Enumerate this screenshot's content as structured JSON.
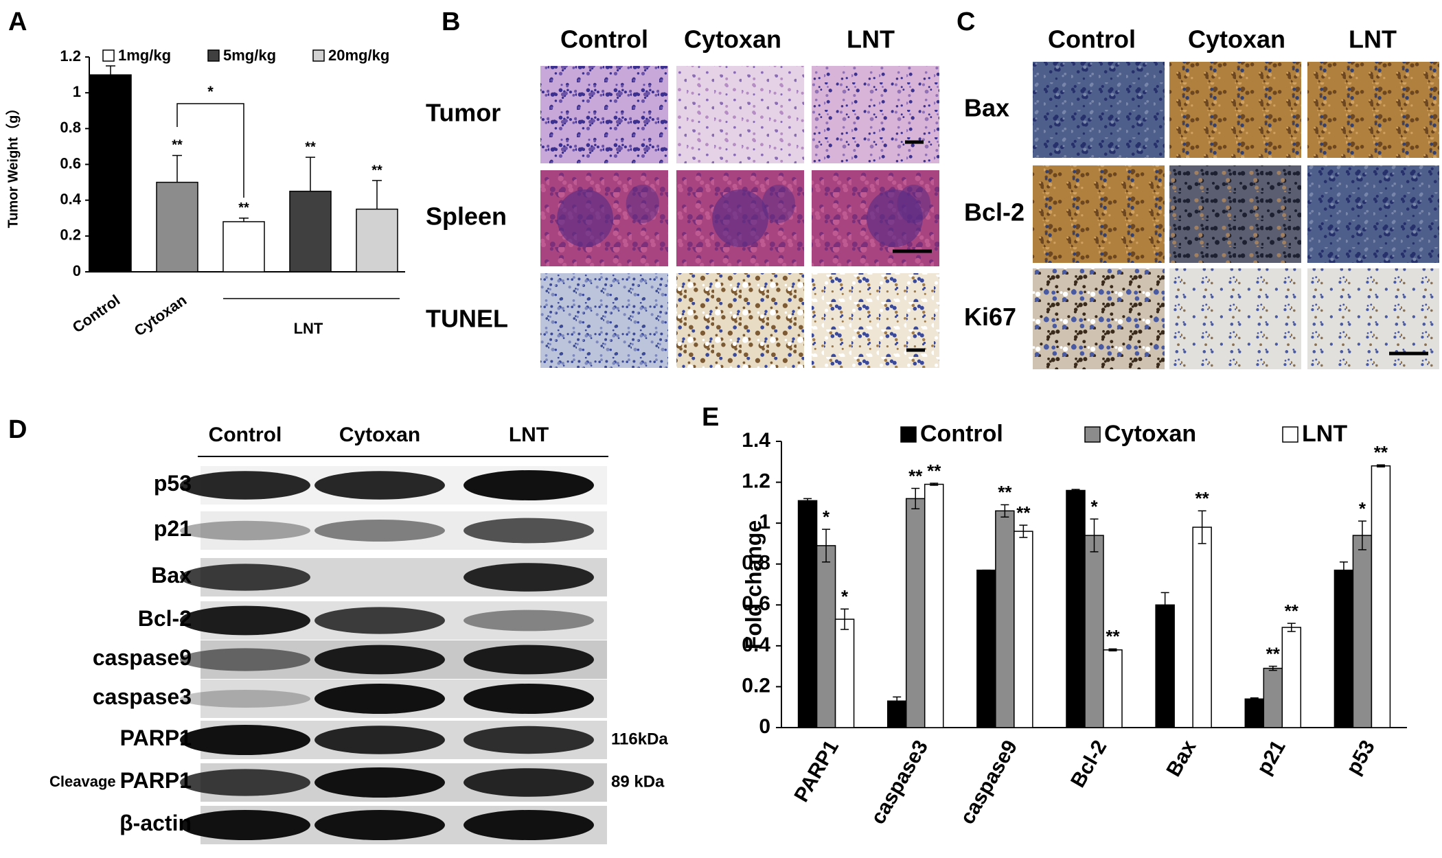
{
  "panel_a": {
    "letter": "A",
    "type": "bar",
    "ylabel": "Tumor Weight（g）",
    "categories": [
      "Control",
      "Cytoxan",
      null,
      null,
      null
    ],
    "values": [
      1.1,
      0.5,
      0.28,
      0.45,
      0.35
    ],
    "errors": [
      0.05,
      0.15,
      0.02,
      0.19,
      0.16
    ],
    "colors": [
      "#000000",
      "#8c8c8c",
      "#ffffff",
      "#404040",
      "#d2d2d2"
    ],
    "annotations": [
      null,
      "**",
      "**",
      "**",
      "**"
    ],
    "legend": [
      {
        "name": "1mg/kg",
        "color": "#ffffff"
      },
      {
        "name": "5mg/kg",
        "color": "#404040"
      },
      {
        "name": "20mg/kg",
        "color": "#d2d2d2"
      }
    ],
    "group_label": "LNT",
    "comparison": "*",
    "ylim": [
      0,
      1.2
    ],
    "yticks": [
      0,
      0.2,
      0.4,
      0.6,
      0.8,
      1,
      1.2
    ]
  },
  "panel_b": {
    "letter": "B",
    "columns": [
      "Control",
      "Cytoxan",
      "LNT"
    ],
    "rows": [
      "Tumor",
      "Spleen",
      "TUNEL"
    ]
  },
  "panel_c": {
    "letter": "C",
    "columns": [
      "Control",
      "Cytoxan",
      "LNT"
    ],
    "rows": [
      "Bax",
      "Bcl-2",
      "Ki67"
    ]
  },
  "panel_d": {
    "letter": "D",
    "columns": [
      "Control",
      "Cytoxan",
      "LNT"
    ],
    "rows": [
      {
        "label": "p53"
      },
      {
        "label": "p21"
      },
      {
        "label": "Bax"
      },
      {
        "label": "Bcl-2"
      },
      {
        "label": "caspase9"
      },
      {
        "label": "caspase3"
      },
      {
        "label": "PARP1",
        "kda": "116kDa"
      },
      {
        "prefix": "Cleavage",
        "label": "PARP1",
        "kda": "89 kDa"
      },
      {
        "label": "β-actin"
      }
    ]
  },
  "panel_e": {
    "letter": "E",
    "type": "bar",
    "ylabel": "Fold change",
    "categories": [
      "PARP1",
      "caspase3",
      "caspase9",
      "Bcl-2",
      "Bax",
      "p21",
      "p53"
    ],
    "series": [
      {
        "name": "Control",
        "color": "#000000",
        "values": [
          1.11,
          0.13,
          0.77,
          1.16,
          0.6,
          0.14,
          0.77
        ],
        "errors": [
          0.01,
          0.02,
          0,
          0.005,
          0.06,
          0.005,
          0.04
        ]
      },
      {
        "name": "Cytoxan",
        "color": "#8c8c8c",
        "values": [
          0.89,
          1.12,
          1.06,
          0.94,
          null,
          0.29,
          0.94
        ],
        "errors": [
          0.08,
          0.05,
          0.03,
          0.08,
          null,
          0.01,
          0.07
        ],
        "annotations": [
          "*",
          "**",
          "**",
          "*",
          null,
          "**",
          "*"
        ]
      },
      {
        "name": "LNT",
        "color": "#ffffff",
        "values": [
          0.53,
          1.19,
          0.96,
          0.38,
          0.98,
          0.49,
          1.28
        ],
        "errors": [
          0.05,
          0.005,
          0.03,
          0.005,
          0.08,
          0.02,
          0.005
        ],
        "annotations": [
          "*",
          "**",
          "**",
          "**",
          "**",
          "**",
          "**"
        ]
      }
    ],
    "ylim": [
      0,
      1.4
    ],
    "yticks": [
      0,
      0.2,
      0.4,
      0.6,
      0.8,
      1,
      1.2,
      1.4
    ]
  }
}
